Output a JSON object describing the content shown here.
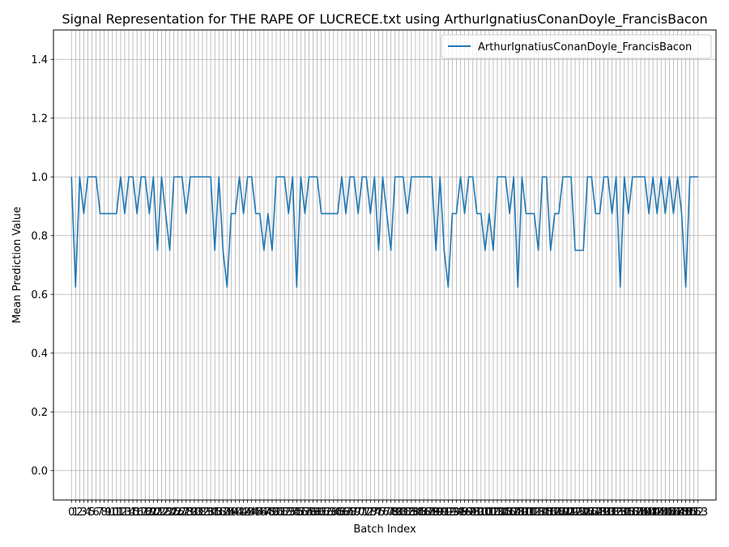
{
  "chart_data": {
    "type": "line",
    "title": "Signal Representation for THE RAPE OF LUCRECE.txt using ArthurIgnatiusConanDoyle_FrancisBacon",
    "xlabel": "Batch Index",
    "ylabel": "Mean Prediction Value",
    "xlim": [
      -4.4,
      157.4
    ],
    "ylim": [
      -0.1,
      1.5
    ],
    "yticks": [
      0.0,
      0.2,
      0.4,
      0.6,
      0.8,
      1.0,
      1.2,
      1.4
    ],
    "ytick_labels": [
      "0.0",
      "0.2",
      "0.4",
      "0.6",
      "0.8",
      "1.0",
      "1.2",
      "1.4"
    ],
    "grid": true,
    "legend_position": "upper right",
    "line_color": "#1f77b4",
    "series": [
      {
        "name": "ArthurIgnatiusConanDoyle_FrancisBacon",
        "x": [
          0,
          1,
          2,
          3,
          4,
          5,
          6,
          7,
          8,
          9,
          10,
          11,
          12,
          13,
          14,
          15,
          16,
          17,
          18,
          19,
          20,
          21,
          22,
          23,
          24,
          25,
          26,
          27,
          28,
          29,
          30,
          31,
          32,
          33,
          34,
          35,
          36,
          37,
          38,
          39,
          40,
          41,
          42,
          43,
          44,
          45,
          46,
          47,
          48,
          49,
          50,
          51,
          52,
          53,
          54,
          55,
          56,
          57,
          58,
          59,
          60,
          61,
          62,
          63,
          64,
          65,
          66,
          67,
          68,
          69,
          70,
          71,
          72,
          73,
          74,
          75,
          76,
          77,
          78,
          79,
          80,
          81,
          82,
          83,
          84,
          85,
          86,
          87,
          88,
          89,
          90,
          91,
          92,
          93,
          94,
          95,
          96,
          97,
          98,
          99,
          100,
          101,
          102,
          103,
          104,
          105,
          106,
          107,
          108,
          109,
          110,
          111,
          112,
          113,
          114,
          115,
          116,
          117,
          118,
          119,
          120,
          121,
          122,
          123,
          124,
          125,
          126,
          127,
          128,
          129,
          130,
          131,
          132,
          133,
          134,
          135,
          136,
          137,
          138,
          139,
          140,
          141,
          142,
          143,
          144,
          145,
          146,
          147,
          148,
          149,
          150,
          151,
          152,
          153
        ],
        "values": [
          1.0,
          0.625,
          1.0,
          0.875,
          1.0,
          1.0,
          1.0,
          0.875,
          0.875,
          0.875,
          0.875,
          0.875,
          1.0,
          0.875,
          1.0,
          1.0,
          0.875,
          1.0,
          1.0,
          0.875,
          1.0,
          0.75,
          1.0,
          0.875,
          0.75,
          1.0,
          1.0,
          1.0,
          0.875,
          1.0,
          1.0,
          1.0,
          1.0,
          1.0,
          1.0,
          0.75,
          1.0,
          0.75,
          0.625,
          0.875,
          0.875,
          1.0,
          0.875,
          1.0,
          1.0,
          0.875,
          0.875,
          0.75,
          0.875,
          0.75,
          1.0,
          1.0,
          1.0,
          0.875,
          1.0,
          0.625,
          1.0,
          0.875,
          1.0,
          1.0,
          1.0,
          0.875,
          0.875,
          0.875,
          0.875,
          0.875,
          1.0,
          0.875,
          1.0,
          1.0,
          0.875,
          1.0,
          1.0,
          0.875,
          1.0,
          0.75,
          1.0,
          0.875,
          0.75,
          1.0,
          1.0,
          1.0,
          0.875,
          1.0,
          1.0,
          1.0,
          1.0,
          1.0,
          1.0,
          0.75,
          1.0,
          0.75,
          0.625,
          0.875,
          0.875,
          1.0,
          0.875,
          1.0,
          1.0,
          0.875,
          0.875,
          0.75,
          0.875,
          0.75,
          1.0,
          1.0,
          1.0,
          0.875,
          1.0,
          0.625,
          1.0,
          0.875,
          0.875,
          0.875,
          0.75,
          1.0,
          1.0,
          0.75,
          0.875,
          0.875,
          1.0,
          1.0,
          1.0,
          0.75,
          0.75,
          0.75,
          1.0,
          1.0,
          0.875,
          0.875,
          1.0,
          1.0,
          0.875,
          1.0,
          0.625,
          1.0,
          0.875,
          1.0,
          1.0,
          1.0,
          1.0,
          0.875,
          1.0,
          0.875,
          1.0,
          0.875,
          1.0,
          0.875,
          1.0,
          0.875,
          0.625,
          1.0,
          1.0,
          1.0
        ]
      }
    ]
  }
}
